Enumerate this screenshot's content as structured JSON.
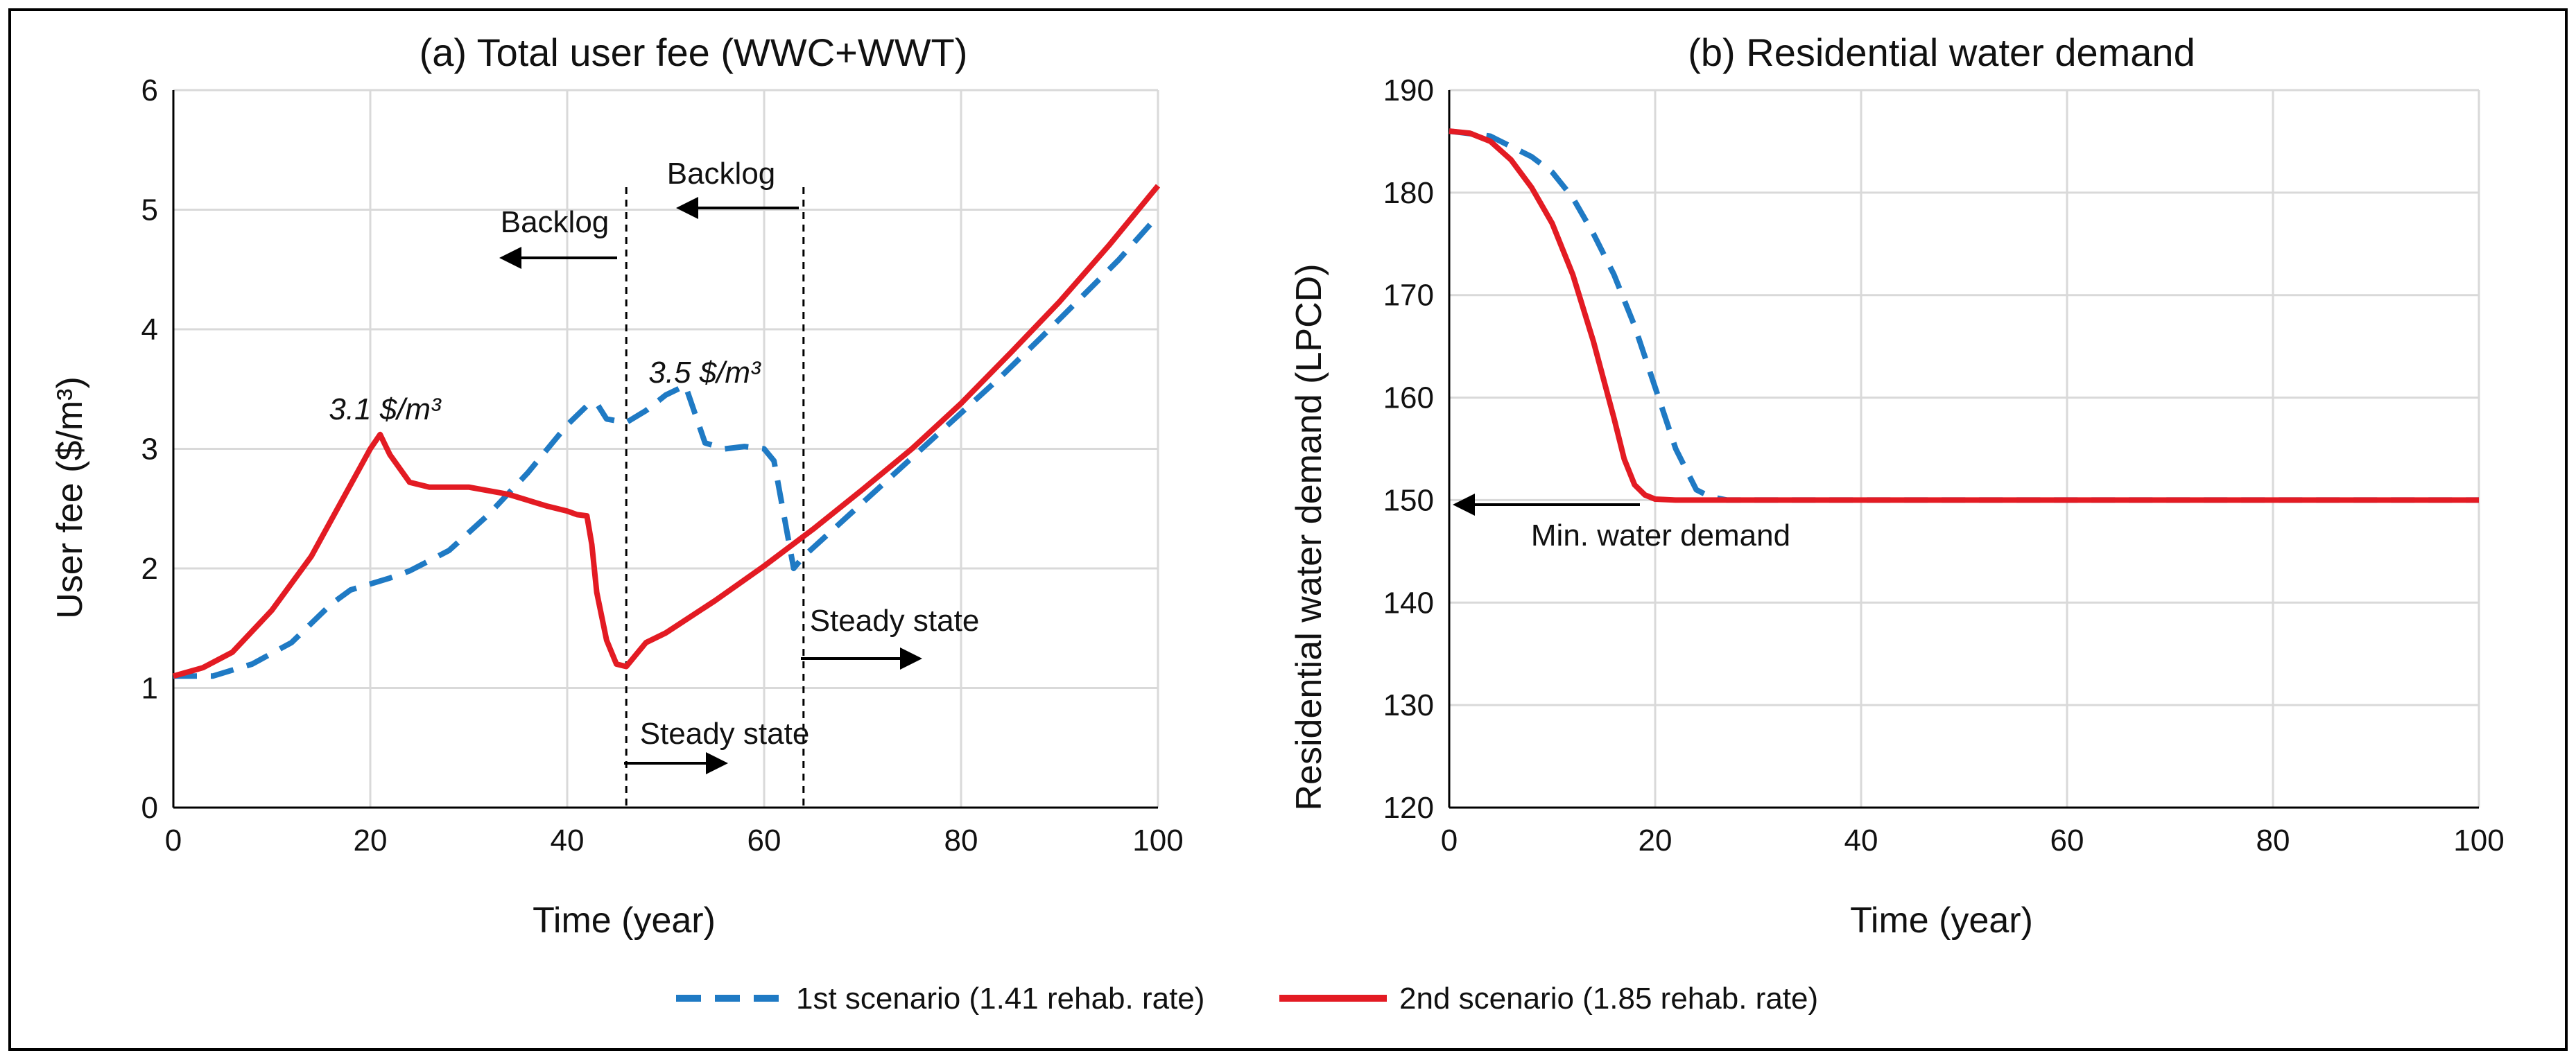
{
  "chart_data": [
    {
      "type": "line",
      "title": "(a) Total user fee (WWC+WWT)",
      "xlabel": "Time (year)",
      "ylabel": "User fee ($/m³)",
      "xlim": [
        0,
        100
      ],
      "ylim": [
        0,
        6
      ],
      "xticks": [
        "0",
        "20",
        "40",
        "60",
        "80",
        "100"
      ],
      "yticks": [
        "0",
        "1",
        "2",
        "3",
        "4",
        "5",
        "6"
      ],
      "grid": true,
      "series": [
        {
          "name": "1st scenario (1.41 rehab. rate)",
          "color": "#1f7ac4",
          "dash": true,
          "x": [
            0,
            4,
            8,
            12,
            16,
            18,
            20,
            22,
            24,
            28,
            32,
            36,
            38,
            40,
            42,
            43,
            44,
            46,
            48,
            50,
            52,
            54,
            56,
            58,
            60,
            61,
            62,
            63,
            64,
            68,
            72,
            76,
            80,
            84,
            88,
            92,
            96,
            100
          ],
          "y": [
            1.1,
            1.1,
            1.2,
            1.38,
            1.7,
            1.82,
            1.87,
            1.92,
            1.98,
            2.15,
            2.45,
            2.8,
            3.0,
            3.2,
            3.36,
            3.38,
            3.25,
            3.22,
            3.32,
            3.45,
            3.53,
            3.05,
            3.0,
            3.02,
            3.0,
            2.9,
            2.45,
            2.0,
            2.1,
            2.4,
            2.7,
            3.0,
            3.3,
            3.6,
            3.92,
            4.25,
            4.58,
            4.95
          ]
        },
        {
          "name": "2nd scenario (1.85 rehab. rate)",
          "color": "#e31b23",
          "dash": false,
          "x": [
            0,
            3,
            6,
            10,
            14,
            18,
            20,
            21,
            22,
            24,
            26,
            30,
            34,
            38,
            40,
            41,
            42,
            42.5,
            43,
            44,
            45,
            46,
            47,
            48,
            50,
            55,
            60,
            65,
            70,
            75,
            80,
            85,
            90,
            95,
            100
          ],
          "y": [
            1.1,
            1.17,
            1.3,
            1.65,
            2.1,
            2.7,
            3.0,
            3.12,
            2.95,
            2.72,
            2.68,
            2.68,
            2.62,
            2.52,
            2.48,
            2.45,
            2.44,
            2.2,
            1.8,
            1.4,
            1.2,
            1.18,
            1.28,
            1.38,
            1.46,
            1.73,
            2.02,
            2.33,
            2.66,
            3.0,
            3.38,
            3.8,
            4.23,
            4.7,
            5.2
          ]
        }
      ],
      "annotations": [
        {
          "text": "3.1 $/m³",
          "x": 21,
          "y": 3.12
        },
        {
          "text": "3.5 $/m³",
          "x": 52,
          "y": 3.53
        },
        {
          "text": "Backlog",
          "x": 45,
          "y": 5.1
        },
        {
          "text": "Backlog",
          "x": 63,
          "y": 5.5
        },
        {
          "text": "Steady state",
          "x": 63,
          "y": 1.5
        },
        {
          "text": "Steady state",
          "x": 46,
          "y": 0.6
        }
      ],
      "vlines": [
        46,
        64
      ]
    },
    {
      "type": "line",
      "title": "(b) Residential water demand",
      "xlabel": "Time (year)",
      "ylabel": "Residential water demand (LPCD)",
      "xlim": [
        0,
        100
      ],
      "ylim": [
        120,
        190
      ],
      "xticks": [
        "0",
        "20",
        "40",
        "60",
        "80",
        "100"
      ],
      "yticks": [
        "120",
        "130",
        "140",
        "150",
        "160",
        "170",
        "180",
        "190"
      ],
      "grid": true,
      "series": [
        {
          "name": "1st scenario (1.41 rehab. rate)",
          "color": "#1f7ac4",
          "dash": true,
          "x": [
            0,
            4,
            8,
            10,
            12,
            14,
            16,
            18,
            20,
            22,
            24,
            25,
            26,
            27,
            28,
            30,
            40,
            60,
            80,
            100
          ],
          "y": [
            186,
            185.5,
            183.5,
            182,
            179.5,
            176,
            172,
            167,
            161,
            155,
            151,
            150.5,
            150.2,
            150,
            150,
            150,
            150,
            150,
            150,
            150
          ]
        },
        {
          "name": "2nd scenario (1.85 rehab. rate)",
          "color": "#e31b23",
          "dash": false,
          "x": [
            0,
            2,
            4,
            6,
            8,
            10,
            12,
            14,
            16,
            17,
            18,
            19,
            20,
            22,
            25,
            30,
            40,
            60,
            80,
            100
          ],
          "y": [
            186,
            185.8,
            185,
            183.2,
            180.5,
            177,
            172,
            165.5,
            158,
            154,
            151.5,
            150.5,
            150.1,
            150,
            150,
            150,
            150,
            150,
            150,
            150
          ]
        }
      ],
      "annotations": [
        {
          "text": "Min. water demand",
          "x": 12,
          "y": 150
        }
      ]
    }
  ],
  "legend": {
    "items": [
      {
        "label": "1st scenario (1.41 rehab. rate)",
        "color": "#1f7ac4",
        "dash": true
      },
      {
        "label": "2nd scenario (1.85 rehab. rate)",
        "color": "#e31b23",
        "dash": false
      }
    ]
  }
}
